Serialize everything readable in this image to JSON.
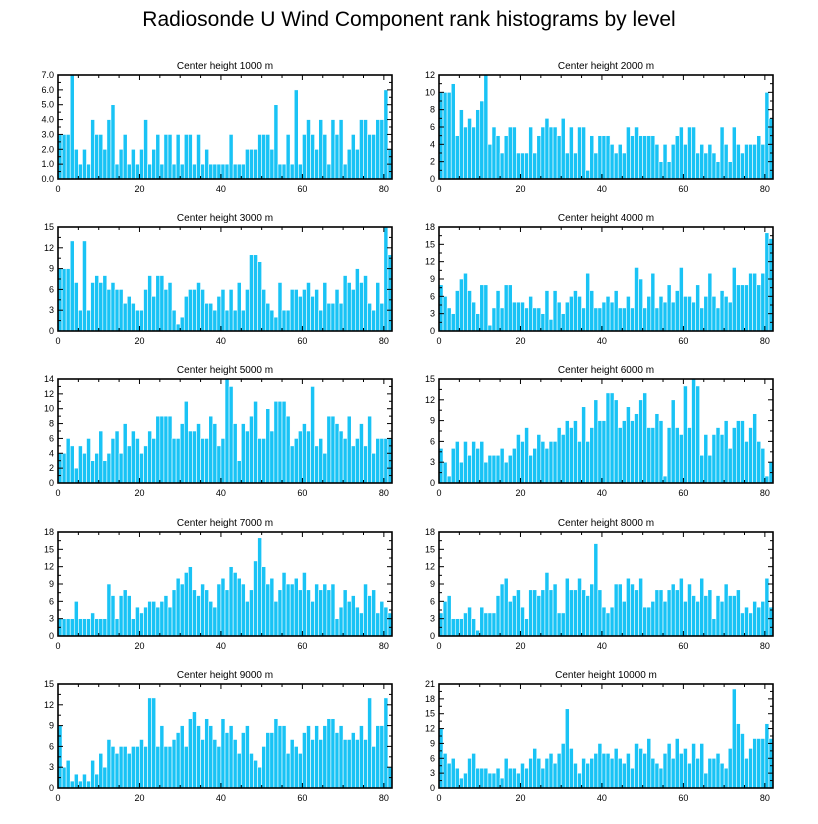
{
  "title": "Radiosonde U Wind Component rank histograms by level",
  "bar_color": "#19c3f5",
  "bar_edge_color": "#ffffff",
  "chart_data": [
    {
      "type": "bar",
      "title": "Center height 1000 m",
      "x_start": 0,
      "xlim": [
        0,
        82
      ],
      "ylim": [
        0,
        7
      ],
      "xticks": [
        "0",
        "20",
        "40",
        "60",
        "80"
      ],
      "yticks": [
        "0.0",
        "1.0",
        "2.0",
        "3.0",
        "4.0",
        "5.0",
        "6.0",
        "7.0"
      ],
      "values": [
        3,
        3,
        3,
        7,
        2,
        1,
        2,
        1,
        4,
        3,
        3,
        2,
        4,
        5,
        1,
        2,
        3,
        1,
        2,
        1,
        2,
        4,
        1,
        2,
        3,
        1,
        3,
        3,
        1,
        3,
        1,
        3,
        3,
        1,
        3,
        1,
        2,
        1,
        1,
        1,
        1,
        1,
        3,
        1,
        1,
        1,
        2,
        2,
        2,
        3,
        3,
        3,
        2,
        5,
        1,
        1,
        3,
        1,
        6,
        1,
        3,
        4,
        3,
        2,
        4,
        3,
        1,
        4,
        3,
        4,
        1,
        2,
        3,
        2,
        4,
        4,
        3,
        3,
        4,
        4,
        6,
        2
      ]
    },
    {
      "type": "bar",
      "title": "Center height 2000 m",
      "x_start": 0,
      "xlim": [
        0,
        82
      ],
      "ylim": [
        0,
        12
      ],
      "xticks": [
        "0",
        "20",
        "40",
        "60",
        "80"
      ],
      "yticks": [
        "0",
        "2",
        "4",
        "6",
        "8",
        "10",
        "12"
      ],
      "values": [
        10,
        10,
        10,
        11,
        5,
        8,
        6,
        7,
        6,
        8,
        9,
        12,
        4,
        6,
        5,
        3,
        5,
        6,
        6,
        3,
        3,
        3,
        6,
        3,
        5,
        6,
        7,
        6,
        6,
        5,
        7,
        3,
        6,
        3,
        6,
        6,
        1,
        5,
        3,
        5,
        5,
        5,
        4,
        3,
        4,
        3,
        6,
        5,
        6,
        5,
        5,
        5,
        5,
        4,
        2,
        4,
        2,
        4,
        5,
        6,
        4,
        6,
        6,
        3,
        4,
        3,
        4,
        3,
        2,
        6,
        4,
        2,
        6,
        4,
        3,
        4,
        4,
        4,
        5,
        4,
        10,
        7
      ]
    },
    {
      "type": "bar",
      "title": "Center height 3000 m",
      "x_start": 0,
      "xlim": [
        0,
        82
      ],
      "ylim": [
        0,
        15
      ],
      "xticks": [
        "0",
        "20",
        "40",
        "60",
        "80"
      ],
      "yticks": [
        "0",
        "3",
        "6",
        "9",
        "12",
        "15"
      ],
      "values": [
        9,
        9,
        9,
        13,
        7,
        3,
        13,
        3,
        7,
        8,
        7,
        8,
        6,
        7,
        6,
        6,
        4,
        5,
        4,
        3,
        3,
        6,
        8,
        5,
        8,
        8,
        6,
        7,
        3,
        1,
        2,
        5,
        6,
        6,
        7,
        6,
        4,
        4,
        3,
        5,
        6,
        3,
        6,
        3,
        7,
        3,
        6,
        11,
        11,
        10,
        6,
        4,
        3,
        2,
        7,
        3,
        3,
        6,
        6,
        5,
        6,
        7,
        5,
        6,
        3,
        7,
        4,
        4,
        6,
        4,
        8,
        7,
        6,
        9,
        7,
        8,
        4,
        3,
        7,
        4,
        15,
        11
      ]
    },
    {
      "type": "bar",
      "title": "Center height 4000 m",
      "x_start": 0,
      "xlim": [
        0,
        82
      ],
      "ylim": [
        0,
        18
      ],
      "xticks": [
        "0",
        "20",
        "40",
        "60",
        "80"
      ],
      "yticks": [
        "0",
        "3",
        "6",
        "9",
        "12",
        "15",
        "18"
      ],
      "values": [
        8,
        6,
        4,
        3,
        7,
        9,
        10,
        7,
        5,
        3,
        8,
        8,
        1,
        4,
        7,
        4,
        8,
        8,
        5,
        5,
        5,
        4,
        6,
        4,
        4,
        3,
        7,
        2,
        7,
        5,
        3,
        5,
        6,
        7,
        6,
        4,
        10,
        7,
        4,
        4,
        5,
        6,
        5,
        7,
        4,
        4,
        6,
        4,
        11,
        9,
        4,
        6,
        10,
        4,
        6,
        5,
        8,
        5,
        7,
        11,
        6,
        6,
        5,
        8,
        4,
        6,
        10,
        6,
        4,
        7,
        6,
        5,
        11,
        8,
        8,
        8,
        10,
        10,
        8,
        10,
        17,
        16
      ]
    },
    {
      "type": "bar",
      "title": "Center height 5000 m",
      "x_start": 0,
      "xlim": [
        0,
        82
      ],
      "ylim": [
        0,
        14
      ],
      "xticks": [
        "0",
        "20",
        "40",
        "60",
        "80"
      ],
      "yticks": [
        "0",
        "2",
        "4",
        "6",
        "8",
        "10",
        "12",
        "14"
      ],
      "values": [
        4,
        4,
        6,
        5,
        2,
        5,
        4,
        6,
        3,
        4,
        7,
        3,
        4,
        6,
        7,
        4,
        8,
        5,
        7,
        6,
        4,
        5,
        7,
        6,
        9,
        9,
        9,
        9,
        6,
        6,
        8,
        11,
        7,
        7,
        8,
        6,
        6,
        9,
        8,
        5,
        6,
        14,
        13,
        8,
        3,
        8,
        7,
        9,
        11,
        6,
        6,
        10,
        7,
        11,
        11,
        11,
        9,
        5,
        6,
        7,
        8,
        7,
        13,
        5,
        6,
        4,
        9,
        9,
        8,
        7,
        6,
        9,
        5,
        6,
        8,
        5,
        9,
        4,
        6,
        6,
        6,
        6
      ]
    },
    {
      "type": "bar",
      "title": "Center height 6000 m",
      "x_start": 0,
      "xlim": [
        0,
        82
      ],
      "ylim": [
        0,
        15
      ],
      "xticks": [
        "0",
        "20",
        "40",
        "60",
        "80"
      ],
      "yticks": [
        "0",
        "3",
        "6",
        "9",
        "12",
        "15"
      ],
      "values": [
        5,
        3,
        1,
        5,
        6,
        3,
        6,
        4,
        6,
        5,
        6,
        3,
        4,
        4,
        4,
        5,
        3,
        4,
        5,
        7,
        6,
        8,
        4,
        5,
        7,
        6,
        5,
        6,
        6,
        8,
        7,
        9,
        8,
        9,
        6,
        11,
        6,
        8,
        12,
        9,
        9,
        13,
        13,
        12,
        8,
        9,
        11,
        9,
        10,
        12,
        13,
        8,
        8,
        10,
        9,
        1,
        8,
        12,
        8,
        7,
        14,
        8,
        15,
        14,
        4,
        7,
        4,
        7,
        8,
        7,
        9,
        5,
        8,
        9,
        9,
        6,
        8,
        10,
        6,
        5,
        1,
        3
      ]
    },
    {
      "type": "bar",
      "title": "Center height 7000 m",
      "x_start": 0,
      "xlim": [
        0,
        82
      ],
      "ylim": [
        0,
        18
      ],
      "xticks": [
        "0",
        "20",
        "40",
        "60",
        "80"
      ],
      "yticks": [
        "0",
        "3",
        "6",
        "9",
        "12",
        "15",
        "18"
      ],
      "values": [
        3,
        3,
        3,
        3,
        6,
        3,
        3,
        3,
        4,
        3,
        3,
        3,
        9,
        7,
        3,
        7,
        8,
        7,
        3,
        5,
        4,
        5,
        6,
        6,
        5,
        6,
        7,
        5,
        8,
        10,
        9,
        11,
        12,
        8,
        7,
        9,
        8,
        6,
        5,
        9,
        10,
        8,
        12,
        11,
        10,
        9,
        6,
        8,
        13,
        17,
        12,
        9,
        10,
        6,
        8,
        11,
        9,
        9,
        10,
        8,
        11,
        8,
        6,
        9,
        8,
        9,
        8,
        9,
        3,
        5,
        8,
        6,
        7,
        5,
        4,
        9,
        7,
        8,
        4,
        6,
        5,
        4
      ]
    },
    {
      "type": "bar",
      "title": "Center height 8000 m",
      "x_start": 0,
      "xlim": [
        0,
        82
      ],
      "ylim": [
        0,
        18
      ],
      "xticks": [
        "0",
        "20",
        "40",
        "60",
        "80"
      ],
      "yticks": [
        "0",
        "3",
        "6",
        "9",
        "12",
        "15",
        "18"
      ],
      "values": [
        4,
        6,
        7,
        3,
        3,
        3,
        4,
        5,
        3,
        1,
        5,
        4,
        4,
        4,
        7,
        9,
        10,
        6,
        7,
        8,
        5,
        3,
        8,
        8,
        7,
        8,
        11,
        8,
        9,
        4,
        4,
        10,
        8,
        8,
        10,
        8,
        7,
        9,
        16,
        8,
        5,
        4,
        5,
        9,
        9,
        6,
        10,
        9,
        8,
        10,
        5,
        5,
        6,
        8,
        8,
        6,
        8,
        9,
        8,
        10,
        6,
        9,
        7,
        6,
        10,
        7,
        8,
        3,
        7,
        6,
        9,
        7,
        7,
        8,
        4,
        5,
        4,
        6,
        5,
        6,
        10,
        5
      ]
    },
    {
      "type": "bar",
      "title": "Center height 9000 m",
      "x_start": 0,
      "xlim": [
        0,
        82
      ],
      "ylim": [
        0,
        15
      ],
      "xticks": [
        "0",
        "20",
        "40",
        "60",
        "80"
      ],
      "yticks": [
        "0",
        "3",
        "6",
        "9",
        "12",
        "15"
      ],
      "values": [
        9,
        3,
        4,
        1,
        2,
        1,
        2,
        1,
        4,
        2,
        5,
        3,
        7,
        6,
        5,
        6,
        6,
        5,
        6,
        6,
        7,
        6,
        13,
        13,
        6,
        9,
        6,
        6,
        7,
        8,
        9,
        6,
        10,
        11,
        9,
        7,
        10,
        9,
        7,
        6,
        10,
        8,
        9,
        7,
        5,
        8,
        9,
        5,
        4,
        3,
        6,
        8,
        8,
        10,
        9,
        9,
        5,
        7,
        6,
        5,
        8,
        9,
        7,
        9,
        7,
        9,
        10,
        10,
        8,
        9,
        7,
        7,
        8,
        7,
        9,
        7,
        13,
        6,
        9,
        9,
        13,
        3
      ]
    },
    {
      "type": "bar",
      "title": "Center height 10000 m",
      "x_start": 0,
      "xlim": [
        0,
        82
      ],
      "ylim": [
        0,
        21
      ],
      "xticks": [
        "0",
        "20",
        "40",
        "60",
        "80"
      ],
      "yticks": [
        "0",
        "3",
        "6",
        "9",
        "12",
        "15",
        "18",
        "21"
      ],
      "values": [
        12,
        7,
        5,
        6,
        4,
        2,
        3,
        6,
        7,
        4,
        4,
        4,
        3,
        3,
        4,
        2,
        6,
        4,
        4,
        3,
        5,
        4,
        6,
        8,
        6,
        4,
        6,
        7,
        5,
        7,
        9,
        16,
        8,
        5,
        3,
        6,
        5,
        6,
        7,
        9,
        7,
        7,
        6,
        8,
        6,
        5,
        7,
        4,
        9,
        8,
        7,
        10,
        6,
        5,
        4,
        7,
        9,
        6,
        10,
        7,
        8,
        5,
        9,
        6,
        9,
        3,
        6,
        6,
        7,
        5,
        4,
        8,
        20,
        13,
        11,
        6,
        8,
        10,
        10,
        10,
        13,
        10
      ]
    }
  ]
}
